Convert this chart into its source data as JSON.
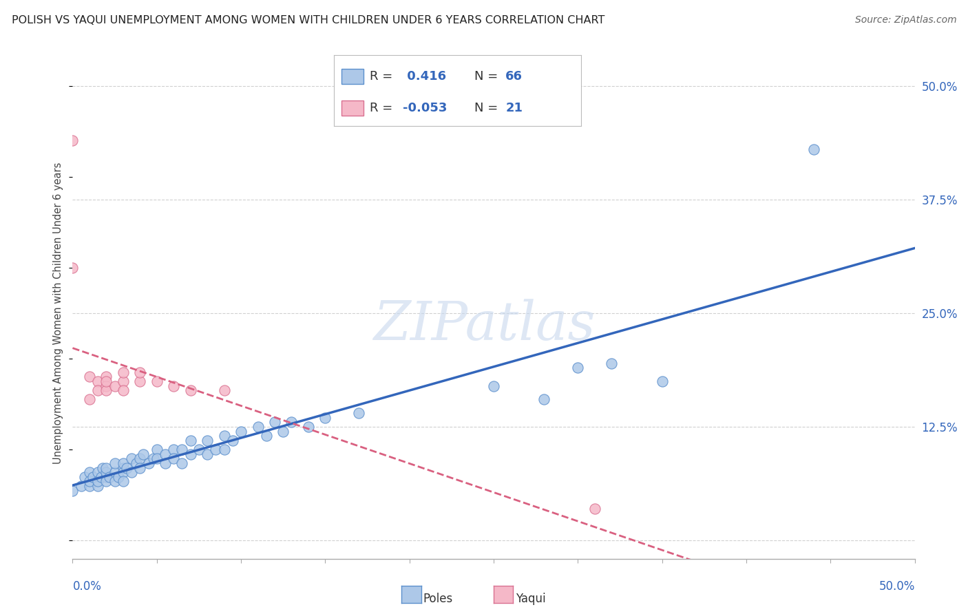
{
  "title": "POLISH VS YAQUI UNEMPLOYMENT AMONG WOMEN WITH CHILDREN UNDER 6 YEARS CORRELATION CHART",
  "source": "Source: ZipAtlas.com",
  "ylabel": "Unemployment Among Women with Children Under 6 years",
  "right_yticks": [
    0.0,
    0.125,
    0.25,
    0.375,
    0.5
  ],
  "right_yticklabels": [
    "",
    "12.5%",
    "25.0%",
    "37.5%",
    "50.0%"
  ],
  "xlim": [
    0.0,
    0.5
  ],
  "ylim": [
    -0.02,
    0.52
  ],
  "poles_R": 0.416,
  "poles_N": 66,
  "yaqui_R": -0.053,
  "yaqui_N": 21,
  "poles_color": "#adc8e8",
  "poles_edge_color": "#5b8fcc",
  "poles_line_color": "#3366bb",
  "yaqui_color": "#f5b8c8",
  "yaqui_edge_color": "#d97090",
  "yaqui_line_color": "#d96080",
  "background_color": "#ffffff",
  "grid_color": "#d0d0d0",
  "poles_scatter": [
    [
      0.0,
      0.055
    ],
    [
      0.005,
      0.06
    ],
    [
      0.007,
      0.07
    ],
    [
      0.01,
      0.06
    ],
    [
      0.01,
      0.075
    ],
    [
      0.01,
      0.065
    ],
    [
      0.012,
      0.07
    ],
    [
      0.015,
      0.06
    ],
    [
      0.015,
      0.075
    ],
    [
      0.015,
      0.065
    ],
    [
      0.017,
      0.07
    ],
    [
      0.018,
      0.08
    ],
    [
      0.02,
      0.07
    ],
    [
      0.02,
      0.075
    ],
    [
      0.02,
      0.065
    ],
    [
      0.02,
      0.08
    ],
    [
      0.022,
      0.07
    ],
    [
      0.025,
      0.075
    ],
    [
      0.025,
      0.085
    ],
    [
      0.025,
      0.065
    ],
    [
      0.027,
      0.07
    ],
    [
      0.03,
      0.08
    ],
    [
      0.03,
      0.075
    ],
    [
      0.03,
      0.065
    ],
    [
      0.03,
      0.085
    ],
    [
      0.032,
      0.08
    ],
    [
      0.035,
      0.09
    ],
    [
      0.035,
      0.075
    ],
    [
      0.038,
      0.085
    ],
    [
      0.04,
      0.09
    ],
    [
      0.04,
      0.08
    ],
    [
      0.042,
      0.095
    ],
    [
      0.045,
      0.085
    ],
    [
      0.048,
      0.09
    ],
    [
      0.05,
      0.1
    ],
    [
      0.05,
      0.09
    ],
    [
      0.055,
      0.095
    ],
    [
      0.055,
      0.085
    ],
    [
      0.06,
      0.1
    ],
    [
      0.06,
      0.09
    ],
    [
      0.065,
      0.1
    ],
    [
      0.065,
      0.085
    ],
    [
      0.07,
      0.095
    ],
    [
      0.07,
      0.11
    ],
    [
      0.075,
      0.1
    ],
    [
      0.08,
      0.11
    ],
    [
      0.08,
      0.095
    ],
    [
      0.085,
      0.1
    ],
    [
      0.09,
      0.115
    ],
    [
      0.09,
      0.1
    ],
    [
      0.095,
      0.11
    ],
    [
      0.1,
      0.12
    ],
    [
      0.11,
      0.125
    ],
    [
      0.115,
      0.115
    ],
    [
      0.12,
      0.13
    ],
    [
      0.125,
      0.12
    ],
    [
      0.13,
      0.13
    ],
    [
      0.14,
      0.125
    ],
    [
      0.15,
      0.135
    ],
    [
      0.17,
      0.14
    ],
    [
      0.25,
      0.17
    ],
    [
      0.28,
      0.155
    ],
    [
      0.3,
      0.19
    ],
    [
      0.32,
      0.195
    ],
    [
      0.35,
      0.175
    ],
    [
      0.44,
      0.43
    ]
  ],
  "yaqui_scatter": [
    [
      0.0,
      0.44
    ],
    [
      0.0,
      0.3
    ],
    [
      0.01,
      0.18
    ],
    [
      0.01,
      0.155
    ],
    [
      0.015,
      0.175
    ],
    [
      0.015,
      0.165
    ],
    [
      0.02,
      0.18
    ],
    [
      0.02,
      0.17
    ],
    [
      0.02,
      0.165
    ],
    [
      0.02,
      0.175
    ],
    [
      0.025,
      0.17
    ],
    [
      0.03,
      0.175
    ],
    [
      0.03,
      0.185
    ],
    [
      0.03,
      0.165
    ],
    [
      0.04,
      0.175
    ],
    [
      0.04,
      0.185
    ],
    [
      0.05,
      0.175
    ],
    [
      0.06,
      0.17
    ],
    [
      0.07,
      0.165
    ],
    [
      0.09,
      0.165
    ],
    [
      0.31,
      0.035
    ]
  ],
  "legend_R_color": "#3366bb",
  "legend_N_color": "#3366bb"
}
